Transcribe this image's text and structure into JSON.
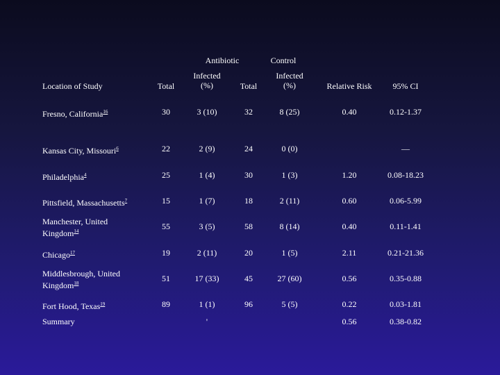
{
  "headers": {
    "group_antibiotic": "Antibiotic",
    "group_control": "Control",
    "location": "Location of Study",
    "total_abx": "Total",
    "infected_abx_1": "Infected",
    "infected_abx_2": "(%)",
    "total_ctrl": "Total",
    "infected_ctrl_1": "Infected",
    "infected_ctrl_2": "(%)",
    "rr": "Relative Risk",
    "ci": "95% CI"
  },
  "rows": [
    {
      "loc1": "Fresno, California",
      "loc2": "",
      "ref": "16",
      "total_abx": "30",
      "inf_abx": "3 (10)",
      "total_ctrl": "32",
      "inf_ctrl": "8 (25)",
      "rr": "0.40",
      "ci": "0.12-1.37"
    },
    {
      "loc1": "Kansas City, Missouri",
      "loc2": "",
      "ref": "6",
      "total_abx": "22",
      "inf_abx": "2 (9)",
      "total_ctrl": "24",
      "inf_ctrl": "0 (0)",
      "rr": "",
      "ci": "—"
    },
    {
      "loc1": "Philadelphia",
      "loc2": "",
      "ref": "4",
      "total_abx": "25",
      "inf_abx": "1 (4)",
      "total_ctrl": "30",
      "inf_ctrl": "1 (3)",
      "rr": "1.20",
      "ci": "0.08-18.23"
    },
    {
      "loc1": "Pittsfield, Massachusetts",
      "loc2": "",
      "ref": "7",
      "total_abx": "15",
      "inf_abx": "1 (7)",
      "total_ctrl": "18",
      "inf_ctrl": "2 (11)",
      "rr": "0.60",
      "ci": "0.06-5.99"
    },
    {
      "loc1": "Manchester, United",
      "loc2": "Kingdom",
      "ref": "14",
      "total_abx": "55",
      "inf_abx": "3 (5)",
      "total_ctrl": "58",
      "inf_ctrl": "8 (14)",
      "rr": "0.40",
      "ci": "0.11-1.41"
    },
    {
      "loc1": "Chicago",
      "loc2": "",
      "ref": "17",
      "total_abx": "19",
      "inf_abx": "2 (11)",
      "total_ctrl": "20",
      "inf_ctrl": "1 (5)",
      "rr": "2.11",
      "ci": "0.21-21.36"
    },
    {
      "loc1": "Middlesbrough, United",
      "loc2": "Kingdom",
      "ref": "18",
      "total_abx": "51",
      "inf_abx": "17 (33)",
      "total_ctrl": "45",
      "inf_ctrl": "27 (60)",
      "rr": "0.56",
      "ci": "0.35-0.88"
    },
    {
      "loc1": "Fort Hood, Texas",
      "loc2": "",
      "ref": "19",
      "total_abx": "89",
      "inf_abx": "1 (1)",
      "total_ctrl": "96",
      "inf_ctrl": "5 (5)",
      "rr": "0.22",
      "ci": "0.03-1.81"
    },
    {
      "loc1": "Summary",
      "loc2": "",
      "ref": "",
      "total_abx": "",
      "inf_abx": "'",
      "total_ctrl": "",
      "inf_ctrl": "",
      "rr": "0.56",
      "ci": "0.38-0.82"
    }
  ]
}
